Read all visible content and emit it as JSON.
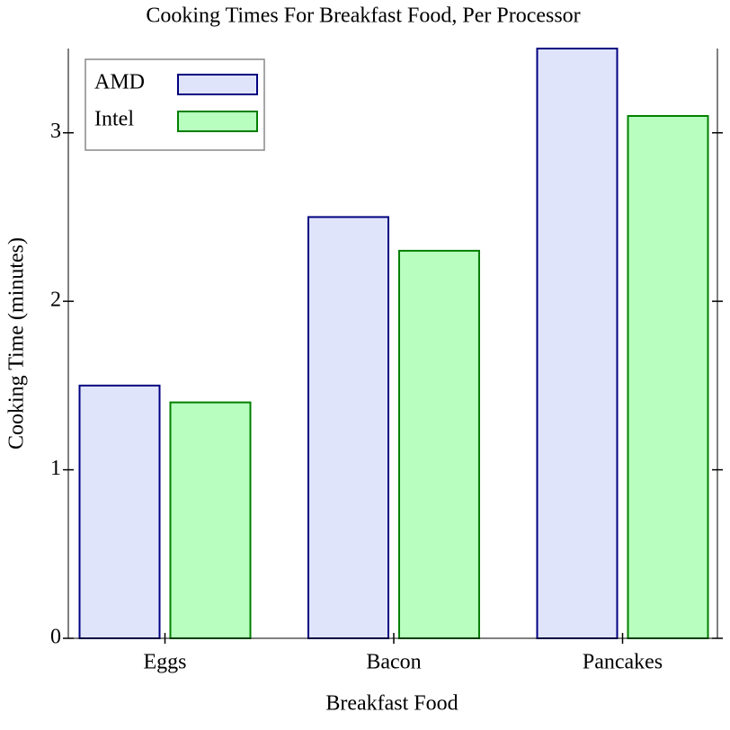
{
  "chart_data": {
    "type": "bar",
    "title": "Cooking Times For Breakfast Food, Per Processor",
    "x_label": "Breakfast Food",
    "y_label": "Cooking Time (minutes)",
    "categories": [
      "Eggs",
      "Bacon",
      "Pancakes"
    ],
    "series": [
      {
        "name": "AMD",
        "color": "#e0e4fb",
        "edgecolor": "#000080",
        "values": [
          1.5,
          2.5,
          3.5
        ]
      },
      {
        "name": "Intel",
        "color": "#b8ffbf",
        "edgecolor": "#008000",
        "values": [
          1.4,
          2.3,
          3.1
        ]
      }
    ],
    "ylim": [
      0,
      3.5
    ],
    "yticks": [
      0,
      1,
      2,
      3
    ],
    "legend": "upper-left"
  }
}
